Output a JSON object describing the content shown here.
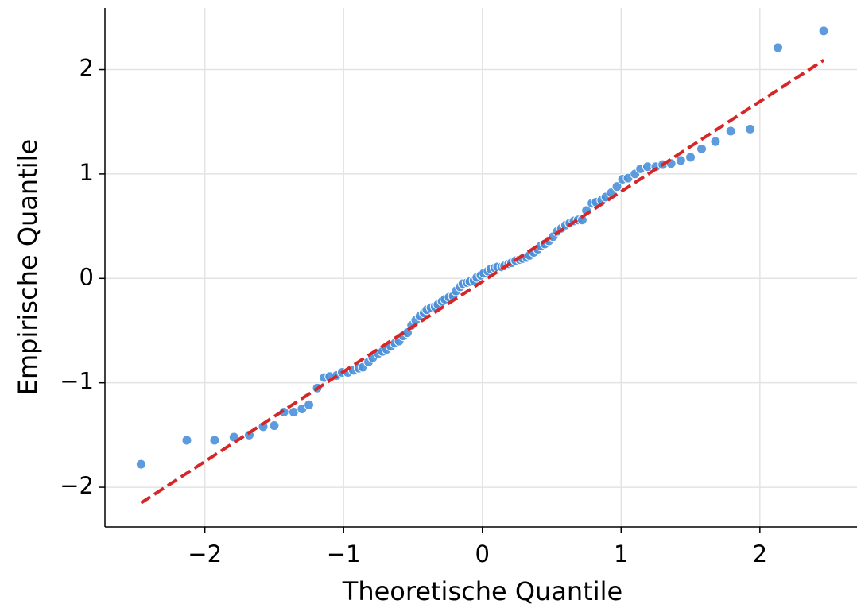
{
  "chart_data": {
    "type": "scatter",
    "x_label": "Theoretische Quantile",
    "y_label": "Empirische Quantile",
    "xlim": [
      -2.72,
      2.7
    ],
    "ylim": [
      -2.38,
      2.59
    ],
    "xticks": [
      {
        "value": -2,
        "label": "−2"
      },
      {
        "value": -1,
        "label": "−1"
      },
      0,
      1,
      2
    ],
    "yticks": [
      {
        "value": -2,
        "label": "−2"
      },
      {
        "value": -1,
        "label": "−1"
      },
      0,
      1,
      2
    ],
    "grid": true,
    "series": [
      {
        "color": "#4a90d9",
        "x": [
          -2.46,
          -2.13,
          -1.93,
          -1.79,
          -1.68,
          -1.58,
          -1.5,
          -1.43,
          -1.36,
          -1.3,
          -1.25,
          -1.19,
          -1.14,
          -1.1,
          -1.05,
          -1.01,
          -0.97,
          -0.93,
          -0.89,
          -0.86,
          -0.82,
          -0.79,
          -0.75,
          -0.72,
          -0.69,
          -0.66,
          -0.63,
          -0.6,
          -0.57,
          -0.54,
          -0.51,
          -0.48,
          -0.45,
          -0.42,
          -0.4,
          -0.37,
          -0.34,
          -0.32,
          -0.29,
          -0.27,
          -0.24,
          -0.21,
          -0.19,
          -0.16,
          -0.14,
          -0.11,
          -0.09,
          -0.06,
          -0.04,
          -0.01,
          0.01,
          0.04,
          0.06,
          0.09,
          0.11,
          0.14,
          0.16,
          0.19,
          0.21,
          0.24,
          0.27,
          0.29,
          0.32,
          0.34,
          0.37,
          0.4,
          0.42,
          0.45,
          0.48,
          0.51,
          0.54,
          0.57,
          0.6,
          0.63,
          0.66,
          0.69,
          0.72,
          0.75,
          0.79,
          0.82,
          0.86,
          0.89,
          0.93,
          0.97,
          1.01,
          1.05,
          1.1,
          1.14,
          1.19,
          1.25,
          1.3,
          1.36,
          1.43,
          1.5,
          1.58,
          1.68,
          1.79,
          1.93,
          2.13,
          2.46
        ],
        "values": [
          -1.78,
          -1.55,
          -1.55,
          -1.52,
          -1.5,
          -1.42,
          -1.41,
          -1.28,
          -1.28,
          -1.25,
          -1.21,
          -1.05,
          -0.95,
          -0.94,
          -0.93,
          -0.9,
          -0.9,
          -0.88,
          -0.86,
          -0.85,
          -0.8,
          -0.76,
          -0.72,
          -0.7,
          -0.68,
          -0.65,
          -0.62,
          -0.6,
          -0.55,
          -0.52,
          -0.45,
          -0.4,
          -0.36,
          -0.33,
          -0.3,
          -0.28,
          -0.27,
          -0.25,
          -0.22,
          -0.2,
          -0.18,
          -0.17,
          -0.12,
          -0.08,
          -0.05,
          -0.04,
          -0.03,
          -0.02,
          0.01,
          0.03,
          0.05,
          0.07,
          0.09,
          0.1,
          0.11,
          0.11,
          0.12,
          0.14,
          0.15,
          0.17,
          0.18,
          0.19,
          0.2,
          0.22,
          0.25,
          0.28,
          0.31,
          0.33,
          0.36,
          0.4,
          0.45,
          0.48,
          0.51,
          0.53,
          0.55,
          0.56,
          0.56,
          0.65,
          0.72,
          0.73,
          0.75,
          0.78,
          0.82,
          0.88,
          0.95,
          0.96,
          1.0,
          1.05,
          1.07,
          1.07,
          1.09,
          1.1,
          1.13,
          1.16,
          1.24,
          1.31,
          1.41,
          1.43,
          2.21,
          2.37
        ]
      },
      {
        "color": "#d62728",
        "line": "dashed",
        "x": [
          -2.46,
          2.46
        ],
        "values": [
          -2.15,
          2.09
        ]
      }
    ]
  }
}
